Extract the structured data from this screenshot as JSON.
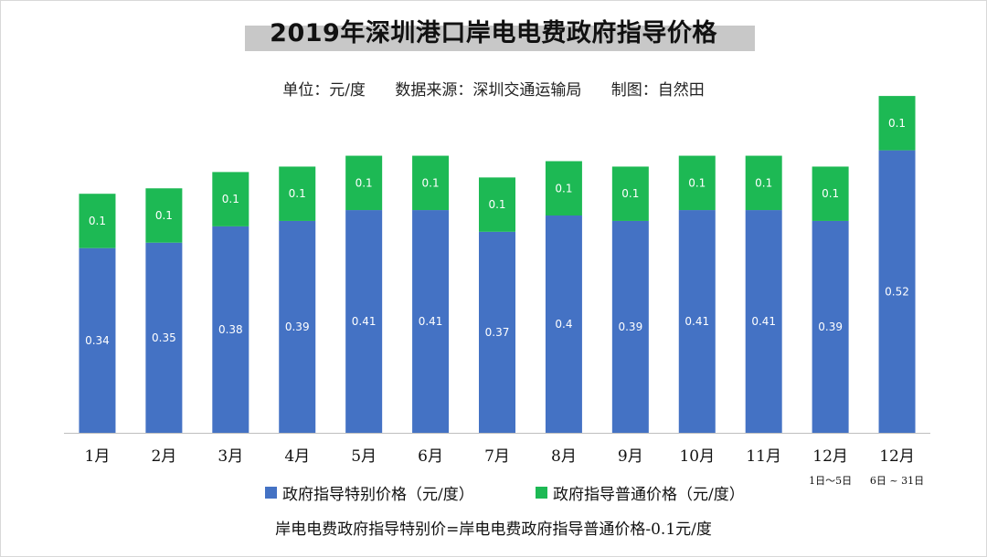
{
  "title": "2019年深圳港口岸电电费政府指导价格",
  "subtitle": "单位：元/度      数据来源：深圳交通运输局      制图：自然田",
  "footnote": "岸电电费政府指导特别价=岸电电费政府指导普通价格-0.1元/度",
  "chart_data": {
    "type": "bar",
    "stacked": true,
    "categories": [
      "1月",
      "2月",
      "3月",
      "4月",
      "5月",
      "6月",
      "7月",
      "8月",
      "9月",
      "10月",
      "11月",
      "12月",
      "12月"
    ],
    "category_sublabels": [
      "",
      "",
      "",
      "",
      "",
      "",
      "",
      "",
      "",
      "",
      "",
      "1日～5日",
      "6日 ~ 31日"
    ],
    "series": [
      {
        "name": "政府指导特别价格（元/度）",
        "color": "#4472c4",
        "values": [
          0.34,
          0.35,
          0.38,
          0.39,
          0.41,
          0.41,
          0.37,
          0.4,
          0.39,
          0.41,
          0.41,
          0.39,
          0.52
        ]
      },
      {
        "name": "政府指导普通价格（元/度）",
        "color": "#1db954",
        "values": [
          0.1,
          0.1,
          0.1,
          0.1,
          0.1,
          0.1,
          0.1,
          0.1,
          0.1,
          0.1,
          0.1,
          0.1,
          0.1
        ]
      }
    ],
    "ylim": [
      0,
      0.62
    ],
    "grid": false,
    "legend_position": "bottom"
  }
}
